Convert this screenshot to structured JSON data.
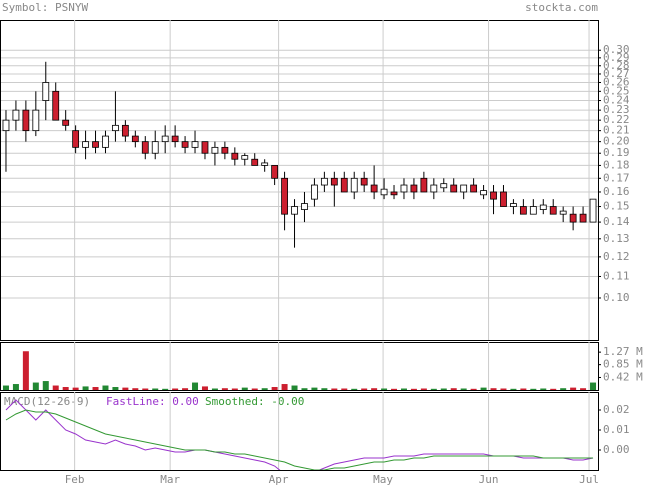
{
  "header": {
    "symbol": "Symbol: PSNYW",
    "source": "stockta.com"
  },
  "chart_data": [
    {
      "type": "candlestick",
      "log_scale": true,
      "grid": true,
      "colors": {
        "up": "#ffffff",
        "down": "#cc1f2f",
        "outline": "#000000"
      },
      "xlim": [
        -0.5,
        59.5
      ],
      "ohlc": [
        [
          0.21,
          0.23,
          0.175,
          0.22
        ],
        [
          0.22,
          0.24,
          0.21,
          0.23
        ],
        [
          0.23,
          0.24,
          0.2,
          0.21
        ],
        [
          0.21,
          0.25,
          0.205,
          0.23
        ],
        [
          0.24,
          0.285,
          0.22,
          0.26
        ],
        [
          0.25,
          0.26,
          0.22,
          0.22
        ],
        [
          0.22,
          0.23,
          0.21,
          0.215
        ],
        [
          0.21,
          0.215,
          0.19,
          0.195
        ],
        [
          0.195,
          0.21,
          0.185,
          0.2
        ],
        [
          0.2,
          0.21,
          0.19,
          0.195
        ],
        [
          0.195,
          0.21,
          0.19,
          0.205
        ],
        [
          0.21,
          0.25,
          0.2,
          0.215
        ],
        [
          0.215,
          0.22,
          0.2,
          0.205
        ],
        [
          0.205,
          0.21,
          0.195,
          0.2
        ],
        [
          0.2,
          0.205,
          0.185,
          0.19
        ],
        [
          0.19,
          0.21,
          0.185,
          0.2
        ],
        [
          0.2,
          0.215,
          0.19,
          0.205
        ],
        [
          0.205,
          0.215,
          0.195,
          0.2
        ],
        [
          0.2,
          0.205,
          0.19,
          0.195
        ],
        [
          0.195,
          0.21,
          0.19,
          0.2
        ],
        [
          0.2,
          0.2,
          0.185,
          0.19
        ],
        [
          0.19,
          0.2,
          0.18,
          0.195
        ],
        [
          0.195,
          0.2,
          0.185,
          0.19
        ],
        [
          0.19,
          0.195,
          0.18,
          0.185
        ],
        [
          0.185,
          0.19,
          0.18,
          0.188
        ],
        [
          0.185,
          0.19,
          0.18,
          0.18
        ],
        [
          0.18,
          0.185,
          0.175,
          0.182
        ],
        [
          0.18,
          0.18,
          0.165,
          0.17
        ],
        [
          0.17,
          0.175,
          0.135,
          0.145
        ],
        [
          0.145,
          0.155,
          0.125,
          0.15
        ],
        [
          0.148,
          0.16,
          0.14,
          0.152
        ],
        [
          0.155,
          0.17,
          0.15,
          0.165
        ],
        [
          0.165,
          0.175,
          0.16,
          0.17
        ],
        [
          0.17,
          0.175,
          0.15,
          0.165
        ],
        [
          0.17,
          0.175,
          0.16,
          0.16
        ],
        [
          0.16,
          0.175,
          0.155,
          0.17
        ],
        [
          0.17,
          0.175,
          0.16,
          0.165
        ],
        [
          0.165,
          0.18,
          0.155,
          0.16
        ],
        [
          0.158,
          0.17,
          0.155,
          0.162
        ],
        [
          0.16,
          0.165,
          0.155,
          0.158
        ],
        [
          0.16,
          0.17,
          0.155,
          0.165
        ],
        [
          0.165,
          0.17,
          0.155,
          0.16
        ],
        [
          0.17,
          0.175,
          0.16,
          0.16
        ],
        [
          0.16,
          0.17,
          0.155,
          0.165
        ],
        [
          0.163,
          0.17,
          0.16,
          0.166
        ],
        [
          0.165,
          0.17,
          0.16,
          0.16
        ],
        [
          0.16,
          0.165,
          0.155,
          0.165
        ],
        [
          0.165,
          0.17,
          0.16,
          0.16
        ],
        [
          0.158,
          0.165,
          0.155,
          0.161
        ],
        [
          0.16,
          0.165,
          0.145,
          0.155
        ],
        [
          0.16,
          0.165,
          0.15,
          0.15
        ],
        [
          0.15,
          0.155,
          0.145,
          0.152
        ],
        [
          0.15,
          0.155,
          0.145,
          0.145
        ],
        [
          0.145,
          0.155,
          0.145,
          0.15
        ],
        [
          0.148,
          0.155,
          0.145,
          0.151
        ],
        [
          0.15,
          0.155,
          0.145,
          0.145
        ],
        [
          0.145,
          0.15,
          0.14,
          0.147
        ],
        [
          0.145,
          0.15,
          0.135,
          0.14
        ],
        [
          0.145,
          0.15,
          0.14,
          0.14
        ],
        [
          0.14,
          0.155,
          0.14,
          0.155
        ]
      ],
      "ylim": [
        0.083,
        0.343
      ],
      "yticks": [
        {
          "value": 0.1,
          "label": "0.10"
        },
        {
          "value": 0.11,
          "label": "0.11"
        },
        {
          "value": 0.12,
          "label": "0.12"
        },
        {
          "value": 0.13,
          "label": "0.13"
        },
        {
          "value": 0.14,
          "label": "0.14"
        },
        {
          "value": 0.15,
          "label": "0.15"
        },
        {
          "value": 0.16,
          "label": "0.16"
        },
        {
          "value": 0.17,
          "label": "0.17"
        },
        {
          "value": 0.18,
          "label": "0.18"
        },
        {
          "value": 0.19,
          "label": "0.19"
        },
        {
          "value": 0.2,
          "label": "0.20"
        },
        {
          "value": 0.21,
          "label": "0.21"
        },
        {
          "value": 0.22,
          "label": "0.22"
        },
        {
          "value": 0.23,
          "label": "0.23"
        },
        {
          "value": 0.24,
          "label": "0.24"
        },
        {
          "value": 0.25,
          "label": "0.25"
        },
        {
          "value": 0.26,
          "label": "0.26"
        },
        {
          "value": 0.27,
          "label": "0.27"
        },
        {
          "value": 0.28,
          "label": "0.28"
        },
        {
          "value": 0.29,
          "label": "0.29"
        },
        {
          "value": 0.3,
          "label": "0.30"
        }
      ]
    },
    {
      "type": "bar",
      "colors": {
        "up": "#228833",
        "down": "#cc1f2f"
      },
      "values": [
        0.15,
        0.2,
        1.3,
        0.25,
        0.3,
        0.15,
        0.1,
        0.08,
        0.12,
        0.1,
        0.15,
        0.1,
        0.08,
        0.06,
        0.05,
        0.05,
        0.04,
        0.05,
        0.06,
        0.25,
        0.12,
        0.05,
        0.06,
        0.05,
        0.08,
        0.05,
        0.06,
        0.1,
        0.2,
        0.15,
        0.06,
        0.08,
        0.06,
        0.05,
        0.05,
        0.04,
        0.05,
        0.06,
        0.05,
        0.04,
        0.05,
        0.04,
        0.05,
        0.04,
        0.05,
        0.06,
        0.05,
        0.04,
        0.08,
        0.06,
        0.05,
        0.04,
        0.05,
        0.04,
        0.05,
        0.04,
        0.06,
        0.08,
        0.06,
        0.25
      ],
      "ylim": [
        0,
        1.61
      ],
      "yticks": [
        {
          "value": 0.42,
          "label": "0.42 M"
        },
        {
          "value": 0.85,
          "label": "0.85 M"
        },
        {
          "value": 1.27,
          "label": "1.27 M"
        }
      ]
    },
    {
      "type": "line",
      "title": "MACD(12-26-9)",
      "series": [
        {
          "name": "FastLine: 0.00",
          "color": "#9933cc",
          "values": [
            0.02,
            0.025,
            0.02,
            0.015,
            0.02,
            0.015,
            0.01,
            0.008,
            0.005,
            0.004,
            0.003,
            0.005,
            0.003,
            0.002,
            0.0,
            0.001,
            0.0,
            -0.001,
            -0.001,
            0.0,
            0.0,
            -0.001,
            -0.002,
            -0.003,
            -0.004,
            -0.005,
            -0.006,
            -0.008,
            -0.012,
            -0.014,
            -0.013,
            -0.011,
            -0.009,
            -0.007,
            -0.006,
            -0.005,
            -0.004,
            -0.004,
            -0.004,
            -0.003,
            -0.003,
            -0.003,
            -0.002,
            -0.002,
            -0.002,
            -0.002,
            -0.002,
            -0.002,
            -0.002,
            -0.003,
            -0.003,
            -0.003,
            -0.004,
            -0.004,
            -0.004,
            -0.004,
            -0.004,
            -0.005,
            -0.005,
            -0.004
          ]
        },
        {
          "name": "Smoothed: -0.00",
          "color": "#339933",
          "values": [
            0.015,
            0.018,
            0.02,
            0.019,
            0.019,
            0.018,
            0.016,
            0.014,
            0.012,
            0.01,
            0.008,
            0.007,
            0.006,
            0.005,
            0.004,
            0.003,
            0.002,
            0.001,
            0.0,
            0.0,
            0.0,
            -0.001,
            -0.001,
            -0.002,
            -0.002,
            -0.003,
            -0.004,
            -0.005,
            -0.006,
            -0.008,
            -0.009,
            -0.01,
            -0.01,
            -0.009,
            -0.009,
            -0.008,
            -0.007,
            -0.006,
            -0.006,
            -0.005,
            -0.005,
            -0.004,
            -0.004,
            -0.003,
            -0.003,
            -0.003,
            -0.003,
            -0.003,
            -0.003,
            -0.003,
            -0.003,
            -0.003,
            -0.003,
            -0.003,
            -0.004,
            -0.004,
            -0.004,
            -0.004,
            -0.004,
            -0.004
          ]
        }
      ],
      "ylim": [
        -0.01,
        0.029
      ],
      "yticks": [
        {
          "value": 0.0,
          "label": "0.00"
        },
        {
          "value": 0.01,
          "label": "0.01"
        },
        {
          "value": 0.02,
          "label": "0.02"
        }
      ],
      "xticks": [
        {
          "value": 6.9,
          "label": "Feb"
        },
        {
          "value": 16.5,
          "label": "Mar"
        },
        {
          "value": 27.4,
          "label": "Apr"
        },
        {
          "value": 37.9,
          "label": "May"
        },
        {
          "value": 48.5,
          "label": "Jun"
        },
        {
          "value": 58.6,
          "label": "Jul"
        }
      ]
    }
  ]
}
